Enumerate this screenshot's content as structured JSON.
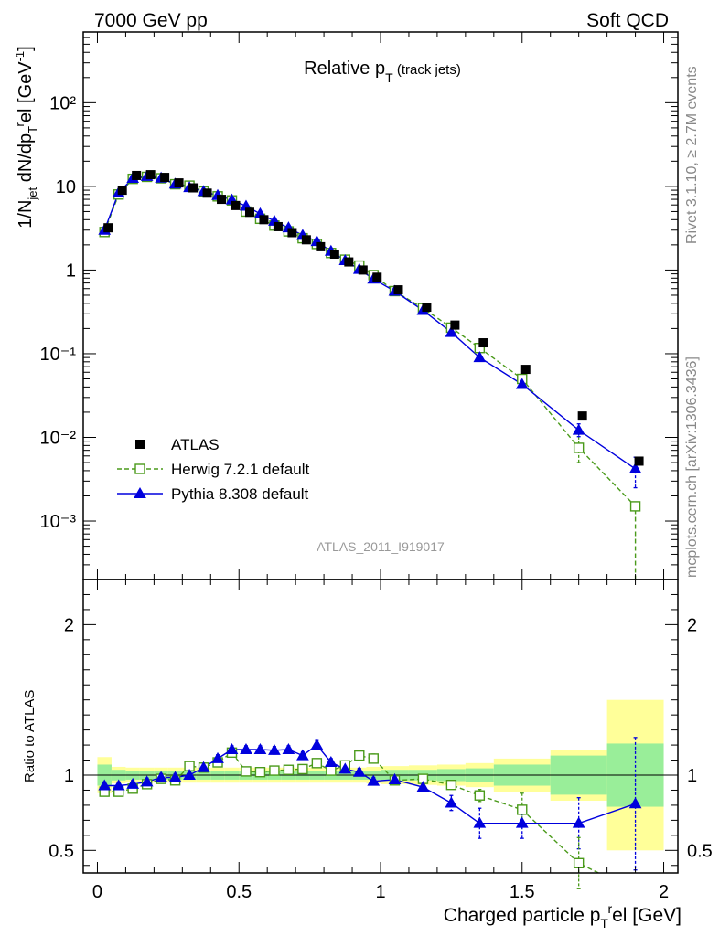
{
  "header": {
    "left": "7000 GeV pp",
    "right": "Soft QCD"
  },
  "title": {
    "main": "Relative p",
    "sub": "T",
    "suffix": " (track jets)"
  },
  "side_text": {
    "rivet": "Rivet 3.1.10, ≥ 2.7M events",
    "mcplots": "mcplots.cern.ch [arXiv:1306.3436]"
  },
  "analysis_id": "ATLAS_2011_I919017",
  "ylabel_main": "1/N_jet dN/dp_T^rel [GeV^-1]",
  "ylabel_ratio": "Ratio to ATLAS",
  "xlabel": "Charged particle p_T^rel [GeV]",
  "colors": {
    "data": "#000000",
    "herwig": "#4a9a1a",
    "pythia": "#0000dd",
    "band_inner": "#99ee99",
    "band_outer": "#ffff99"
  },
  "chart_data": [
    {
      "type": "scatter",
      "panel": "main",
      "yscale": "log",
      "xlim": [
        -0.05,
        2.05
      ],
      "ylim": [
        0.0002,
        700
      ],
      "x_ticks": [
        0,
        0.5,
        1,
        1.5,
        2
      ],
      "y_tick_labels": [
        "10⁻³",
        "10⁻²",
        "10⁻¹",
        "1",
        "10",
        "10²"
      ],
      "legend": [
        "ATLAS",
        "Herwig 7.2.1 default",
        "Pythia 8.308 default"
      ],
      "legend_position": "lower-left",
      "x": [
        0.025,
        0.075,
        0.125,
        0.175,
        0.225,
        0.275,
        0.325,
        0.375,
        0.425,
        0.475,
        0.525,
        0.575,
        0.625,
        0.675,
        0.725,
        0.775,
        0.825,
        0.875,
        0.925,
        0.975,
        1.05,
        1.15,
        1.25,
        1.35,
        1.5,
        1.7,
        1.9
      ],
      "series": [
        {
          "name": "ATLAS",
          "values": [
            3.2,
            9.0,
            13.5,
            13.8,
            12.8,
            11.0,
            9.6,
            8.3,
            7.0,
            5.9,
            4.9,
            4.0,
            3.3,
            2.8,
            2.3,
            1.9,
            1.55,
            1.25,
            1.0,
            0.82,
            0.58,
            0.36,
            0.22,
            0.135,
            0.065,
            0.018,
            0.0052
          ]
        },
        {
          "name": "Herwig 7.2.1 default",
          "values": [
            2.85,
            8.0,
            12.3,
            13.0,
            12.5,
            10.6,
            10.2,
            8.7,
            7.6,
            6.8,
            5.0,
            4.1,
            3.4,
            2.9,
            2.4,
            2.05,
            1.6,
            1.33,
            1.13,
            0.87,
            0.56,
            0.35,
            0.205,
            0.117,
            0.05,
            0.0075,
            0.0015
          ]
        },
        {
          "name": "Pythia 8.308 default",
          "values": [
            3.0,
            8.4,
            12.5,
            13.2,
            12.6,
            10.7,
            9.7,
            8.7,
            7.8,
            6.9,
            5.8,
            4.7,
            3.85,
            3.2,
            2.6,
            2.2,
            1.68,
            1.3,
            1.02,
            0.78,
            0.56,
            0.33,
            0.18,
            0.09,
            0.043,
            0.0122,
            0.0042
          ]
        }
      ]
    },
    {
      "type": "scatter",
      "panel": "ratio",
      "xlim": [
        -0.05,
        2.05
      ],
      "ylim": [
        0.35,
        2.3
      ],
      "x_ticks": [
        0,
        0.5,
        1,
        1.5,
        2
      ],
      "y_ticks": [
        0.5,
        1,
        2
      ],
      "x": [
        0.025,
        0.075,
        0.125,
        0.175,
        0.225,
        0.275,
        0.325,
        0.375,
        0.425,
        0.475,
        0.525,
        0.575,
        0.625,
        0.675,
        0.725,
        0.775,
        0.825,
        0.875,
        0.925,
        0.975,
        1.05,
        1.15,
        1.25,
        1.35,
        1.5,
        1.7,
        1.9
      ],
      "series": [
        {
          "name": "Herwig 7.2.1 default",
          "values": [
            0.89,
            0.89,
            0.91,
            0.94,
            0.975,
            0.965,
            1.06,
            1.05,
            1.085,
            1.15,
            1.025,
            1.02,
            1.03,
            1.035,
            1.04,
            1.08,
            1.03,
            1.065,
            1.13,
            1.11,
            0.965,
            0.975,
            0.935,
            0.865,
            0.77,
            0.415,
            0.29
          ]
        },
        {
          "name": "Pythia 8.308 default",
          "values": [
            0.93,
            0.93,
            0.94,
            0.955,
            0.985,
            0.985,
            1.0,
            1.05,
            1.11,
            1.17,
            1.17,
            1.17,
            1.165,
            1.17,
            1.13,
            1.2,
            1.085,
            1.04,
            1.02,
            0.96,
            0.97,
            0.92,
            0.815,
            0.68,
            0.68,
            0.68,
            0.81
          ]
        }
      ],
      "bands": {
        "edges": [
          0,
          0.05,
          0.1,
          0.15,
          0.2,
          0.25,
          0.3,
          0.35,
          0.4,
          0.45,
          0.5,
          0.55,
          0.6,
          0.65,
          0.7,
          0.75,
          0.8,
          0.85,
          0.9,
          0.95,
          1.0,
          1.1,
          1.2,
          1.3,
          1.4,
          1.6,
          1.8,
          2.0
        ],
        "inner": [
          0.07,
          0.035,
          0.03,
          0.03,
          0.03,
          0.03,
          0.03,
          0.03,
          0.03,
          0.03,
          0.03,
          0.03,
          0.03,
          0.03,
          0.03,
          0.03,
          0.03,
          0.03,
          0.03,
          0.03,
          0.035,
          0.035,
          0.04,
          0.045,
          0.07,
          0.13,
          0.21
        ],
        "outer": [
          0.12,
          0.055,
          0.05,
          0.05,
          0.05,
          0.05,
          0.05,
          0.05,
          0.05,
          0.05,
          0.05,
          0.05,
          0.05,
          0.05,
          0.05,
          0.05,
          0.05,
          0.05,
          0.05,
          0.055,
          0.06,
          0.065,
          0.07,
          0.08,
          0.11,
          0.17,
          0.5
        ]
      }
    }
  ]
}
